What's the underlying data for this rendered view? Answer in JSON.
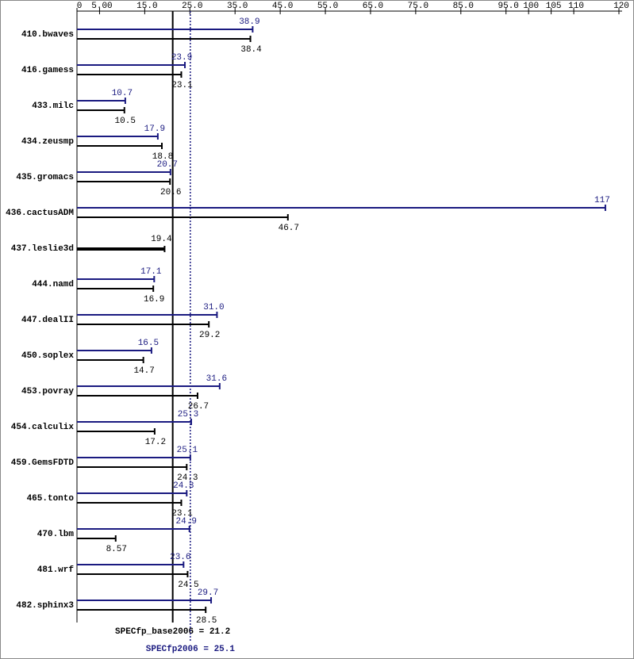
{
  "chart_data": {
    "type": "bar",
    "categories": [
      "410.bwaves",
      "416.gamess",
      "433.milc",
      "434.zeusmp",
      "435.gromacs",
      "436.cactusADM",
      "437.leslie3d",
      "444.namd",
      "447.dealII",
      "450.soplex",
      "453.povray",
      "454.calculix",
      "459.GemsFDTD",
      "465.tonto",
      "470.lbm",
      "481.wrf",
      "482.sphinx3"
    ],
    "series": [
      {
        "color": "#1a1a80",
        "values": [
          38.9,
          23.9,
          10.7,
          17.9,
          20.7,
          117,
          null,
          17.1,
          31.0,
          16.5,
          31.6,
          25.3,
          25.1,
          24.3,
          24.9,
          23.6,
          29.7
        ],
        "value_labels": [
          "38.9",
          "23.9",
          "10.7",
          "17.9",
          "20.7",
          "117",
          null,
          "17.1",
          "31.0",
          "16.5",
          "31.6",
          "25.3",
          "25.1",
          "24.3",
          "24.9",
          "23.6",
          "29.7"
        ]
      },
      {
        "color": "#000000",
        "values": [
          38.4,
          23.1,
          10.5,
          18.8,
          20.6,
          46.7,
          19.4,
          16.9,
          29.2,
          14.7,
          26.7,
          17.2,
          24.3,
          23.1,
          8.57,
          24.5,
          28.5
        ],
        "value_labels": [
          "38.4",
          "23.1",
          "10.5",
          "18.8",
          "20.6",
          "46.7",
          "19.4",
          "16.9",
          "29.2",
          "14.7",
          "26.7",
          "17.2",
          "24.3",
          "23.1",
          "8.57",
          "24.5",
          "28.5"
        ]
      }
    ],
    "xlim": [
      0,
      120
    ],
    "xticks": [
      0,
      {
        "value": 5,
        "label": "5.00"
      },
      {
        "value": 15,
        "label": "15.0"
      },
      {
        "value": 25,
        "label": "25.0"
      },
      {
        "value": 35,
        "label": "35.0"
      },
      {
        "value": 45,
        "label": "45.0"
      },
      {
        "value": 55,
        "label": "55.0"
      },
      {
        "value": 65,
        "label": "65.0"
      },
      {
        "value": 75,
        "label": "75.0"
      },
      {
        "value": 85,
        "label": "85.0"
      },
      {
        "value": 95,
        "label": "95.0"
      },
      100,
      105,
      110,
      120
    ],
    "reference_lines": [
      {
        "label": "SPECfp_base2006 = 21.2",
        "value": 21.2,
        "color": "#000000"
      },
      {
        "label": "SPECfp2006 = 25.1",
        "value": 25.1,
        "color": "#1a1a80"
      }
    ]
  }
}
